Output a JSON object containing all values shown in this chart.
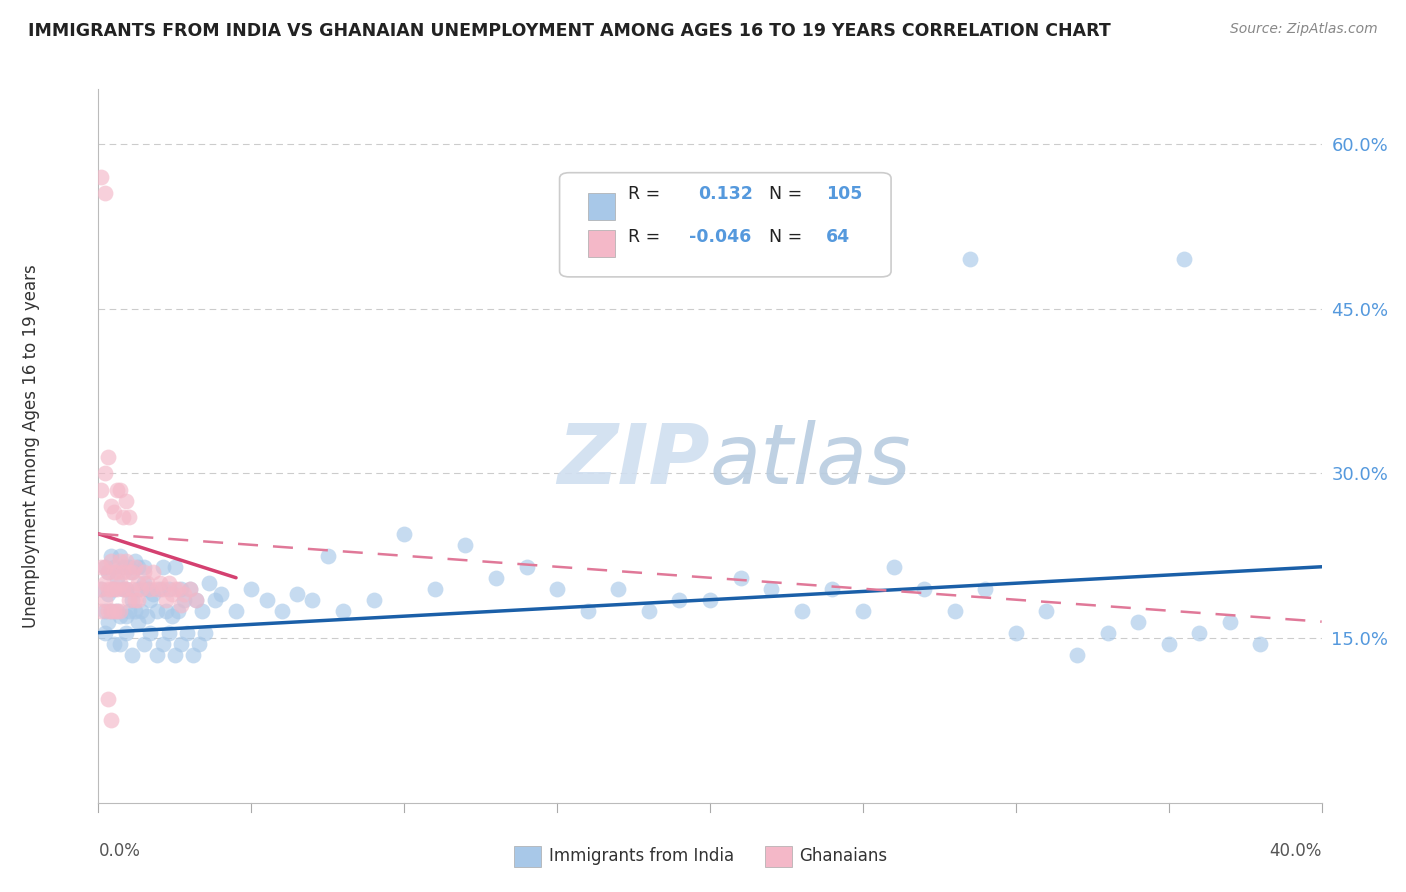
{
  "title": "IMMIGRANTS FROM INDIA VS GHANAIAN UNEMPLOYMENT AMONG AGES 16 TO 19 YEARS CORRELATION CHART",
  "source": "Source: ZipAtlas.com",
  "ylabel": "Unemployment Among Ages 16 to 19 years",
  "legend_label1": "Immigrants from India",
  "legend_label2": "Ghanaians",
  "blue_dot_color": "#a8c8e8",
  "pink_dot_color": "#f4b8c8",
  "blue_line_color": "#1a5fa8",
  "pink_line_color": "#d44070",
  "pink_dash_color": "#e07898",
  "watermark_color": "#d0dff0",
  "grid_color": "#cccccc",
  "tick_color": "#5599dd",
  "x_range": [
    0.0,
    0.4
  ],
  "y_range": [
    0.0,
    0.65
  ],
  "y_ticks": [
    0.15,
    0.3,
    0.45,
    0.6
  ],
  "y_tick_labels": [
    "15.0%",
    "30.0%",
    "45.0%",
    "60.0%"
  ],
  "india_x": [
    0.001,
    0.002,
    0.002,
    0.003,
    0.003,
    0.004,
    0.004,
    0.005,
    0.005,
    0.006,
    0.006,
    0.007,
    0.007,
    0.008,
    0.008,
    0.009,
    0.009,
    0.01,
    0.01,
    0.011,
    0.011,
    0.012,
    0.012,
    0.013,
    0.013,
    0.014,
    0.015,
    0.015,
    0.016,
    0.016,
    0.017,
    0.018,
    0.019,
    0.02,
    0.021,
    0.022,
    0.023,
    0.024,
    0.025,
    0.026,
    0.027,
    0.028,
    0.03,
    0.032,
    0.034,
    0.036,
    0.038,
    0.04,
    0.045,
    0.05,
    0.055,
    0.06,
    0.065,
    0.07,
    0.075,
    0.08,
    0.09,
    0.1,
    0.11,
    0.12,
    0.13,
    0.14,
    0.15,
    0.16,
    0.17,
    0.18,
    0.19,
    0.2,
    0.21,
    0.22,
    0.23,
    0.24,
    0.25,
    0.26,
    0.27,
    0.28,
    0.29,
    0.3,
    0.31,
    0.32,
    0.33,
    0.34,
    0.35,
    0.36,
    0.37,
    0.38,
    0.002,
    0.003,
    0.005,
    0.007,
    0.009,
    0.011,
    0.013,
    0.015,
    0.017,
    0.019,
    0.021,
    0.023,
    0.025,
    0.027,
    0.029,
    0.031,
    0.033,
    0.035,
    0.285,
    0.355
  ],
  "india_y": [
    0.195,
    0.175,
    0.215,
    0.19,
    0.21,
    0.175,
    0.225,
    0.195,
    0.215,
    0.175,
    0.205,
    0.17,
    0.225,
    0.195,
    0.215,
    0.17,
    0.195,
    0.215,
    0.175,
    0.21,
    0.185,
    0.22,
    0.175,
    0.195,
    0.215,
    0.175,
    0.2,
    0.215,
    0.17,
    0.195,
    0.185,
    0.19,
    0.175,
    0.195,
    0.215,
    0.175,
    0.195,
    0.17,
    0.215,
    0.175,
    0.195,
    0.185,
    0.195,
    0.185,
    0.175,
    0.2,
    0.185,
    0.19,
    0.175,
    0.195,
    0.185,
    0.175,
    0.19,
    0.185,
    0.225,
    0.175,
    0.185,
    0.245,
    0.195,
    0.235,
    0.205,
    0.215,
    0.195,
    0.175,
    0.195,
    0.175,
    0.185,
    0.185,
    0.205,
    0.195,
    0.175,
    0.195,
    0.175,
    0.215,
    0.195,
    0.175,
    0.195,
    0.155,
    0.175,
    0.135,
    0.155,
    0.165,
    0.145,
    0.155,
    0.165,
    0.145,
    0.155,
    0.165,
    0.145,
    0.145,
    0.155,
    0.135,
    0.165,
    0.145,
    0.155,
    0.135,
    0.145,
    0.155,
    0.135,
    0.145,
    0.155,
    0.135,
    0.145,
    0.155,
    0.495,
    0.495
  ],
  "ghana_x": [
    0.001,
    0.001,
    0.001,
    0.002,
    0.002,
    0.002,
    0.003,
    0.003,
    0.003,
    0.004,
    0.004,
    0.004,
    0.005,
    0.005,
    0.005,
    0.006,
    0.006,
    0.006,
    0.007,
    0.007,
    0.007,
    0.008,
    0.008,
    0.009,
    0.009,
    0.01,
    0.01,
    0.011,
    0.011,
    0.012,
    0.012,
    0.013,
    0.013,
    0.014,
    0.015,
    0.016,
    0.017,
    0.018,
    0.019,
    0.02,
    0.021,
    0.022,
    0.023,
    0.024,
    0.025,
    0.026,
    0.027,
    0.028,
    0.03,
    0.032,
    0.001,
    0.002,
    0.003,
    0.004,
    0.005,
    0.006,
    0.007,
    0.008,
    0.009,
    0.01,
    0.001,
    0.002,
    0.003,
    0.004
  ],
  "ghana_y": [
    0.215,
    0.195,
    0.175,
    0.215,
    0.2,
    0.185,
    0.21,
    0.195,
    0.175,
    0.22,
    0.195,
    0.175,
    0.21,
    0.195,
    0.175,
    0.21,
    0.195,
    0.175,
    0.22,
    0.2,
    0.175,
    0.21,
    0.195,
    0.22,
    0.195,
    0.21,
    0.185,
    0.21,
    0.195,
    0.215,
    0.185,
    0.2,
    0.185,
    0.195,
    0.21,
    0.2,
    0.195,
    0.21,
    0.195,
    0.2,
    0.195,
    0.185,
    0.2,
    0.19,
    0.195,
    0.195,
    0.18,
    0.19,
    0.195,
    0.185,
    0.285,
    0.3,
    0.315,
    0.27,
    0.265,
    0.285,
    0.285,
    0.26,
    0.275,
    0.26,
    0.57,
    0.555,
    0.095,
    0.075
  ],
  "india_line_x": [
    0.0,
    0.4
  ],
  "india_line_y": [
    0.155,
    0.215
  ],
  "ghana_solid_line_x": [
    0.0,
    0.045
  ],
  "ghana_solid_line_y": [
    0.245,
    0.205
  ],
  "ghana_dash_line_x": [
    0.0,
    0.4
  ],
  "ghana_dash_line_y": [
    0.245,
    0.165
  ]
}
